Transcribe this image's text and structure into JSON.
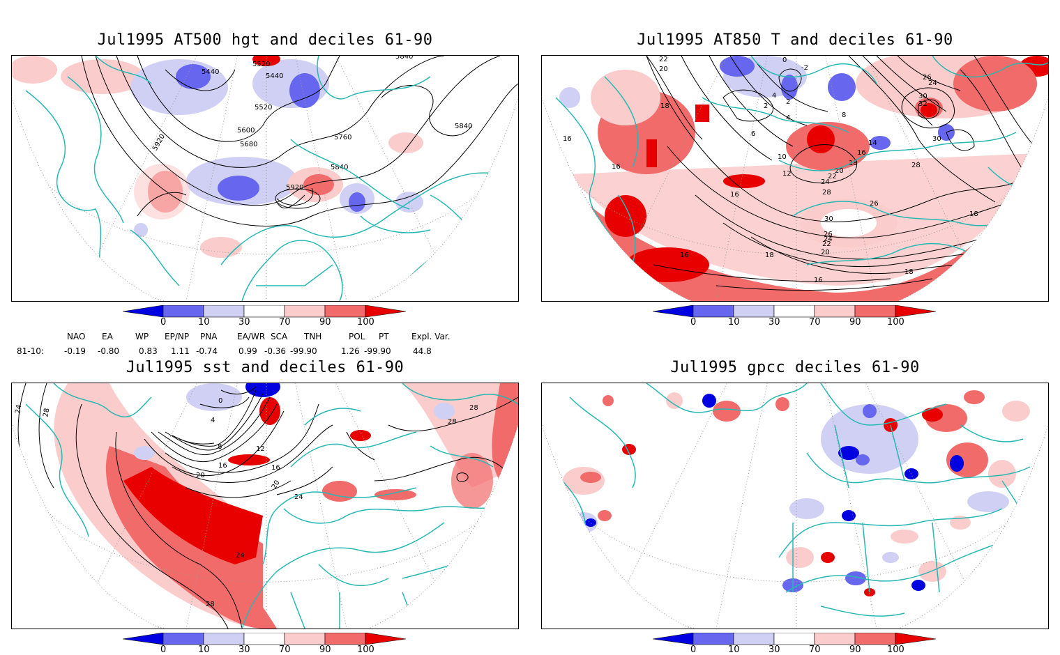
{
  "panels": [
    {
      "title": "Jul1995 AT500 hgt and deciles 61-90",
      "contour_labels": [
        "5440",
        "5520",
        "5440",
        "5520",
        "5600",
        "5680",
        "5760",
        "5840",
        "5840",
        "5840",
        "5920",
        "5920"
      ]
    },
    {
      "title": "Jul1995 AT850 T and deciles 61-90",
      "contour_labels": [
        "22",
        "20",
        "18",
        "16",
        "16",
        "16",
        "6",
        "4",
        "2",
        "0",
        "-2",
        "2",
        "4",
        "8",
        "10",
        "12",
        "14",
        "16",
        "18",
        "20",
        "22",
        "24",
        "26",
        "28",
        "30",
        "32",
        "30",
        "28",
        "26",
        "24",
        "22",
        "20",
        "18",
        "18",
        "18",
        "16",
        "16",
        "24",
        "30",
        "26"
      ]
    },
    {
      "title": "Jul1995 sst and deciles 61-90",
      "contour_labels": [
        "24",
        "28",
        "0",
        "4",
        "8",
        "12",
        "16",
        "16",
        "20",
        "20",
        "24",
        "28",
        "28",
        "24",
        "28"
      ]
    },
    {
      "title": "Jul1995 gpcc deciles 61-90",
      "contour_labels": []
    }
  ],
  "colorbar": {
    "ticks": [
      "0",
      "10",
      "30",
      "70",
      "90",
      "100"
    ],
    "colors": [
      "#0000e0",
      "#6666ee",
      "#d0d0f4",
      "#ffffff",
      "#fbcccc",
      "#f26b6b",
      "#e80000"
    ]
  },
  "indices": {
    "row_label": "81-10:",
    "headers": [
      "NAO",
      "EA",
      "WP",
      "EP/NP",
      "PNA",
      "EA/WR",
      "SCA",
      "TNH",
      "POL",
      "PT",
      "Expl. Var."
    ],
    "values": [
      "-0.19",
      "-0.80",
      "0.83",
      "1.11",
      "-0.74",
      "0.99",
      "-0.36",
      "-99.90",
      "1.26",
      "-99.90",
      "44.8"
    ]
  },
  "colors": {
    "coastline": "#28b8b4",
    "grid": "#999999",
    "contour": "#000000"
  }
}
